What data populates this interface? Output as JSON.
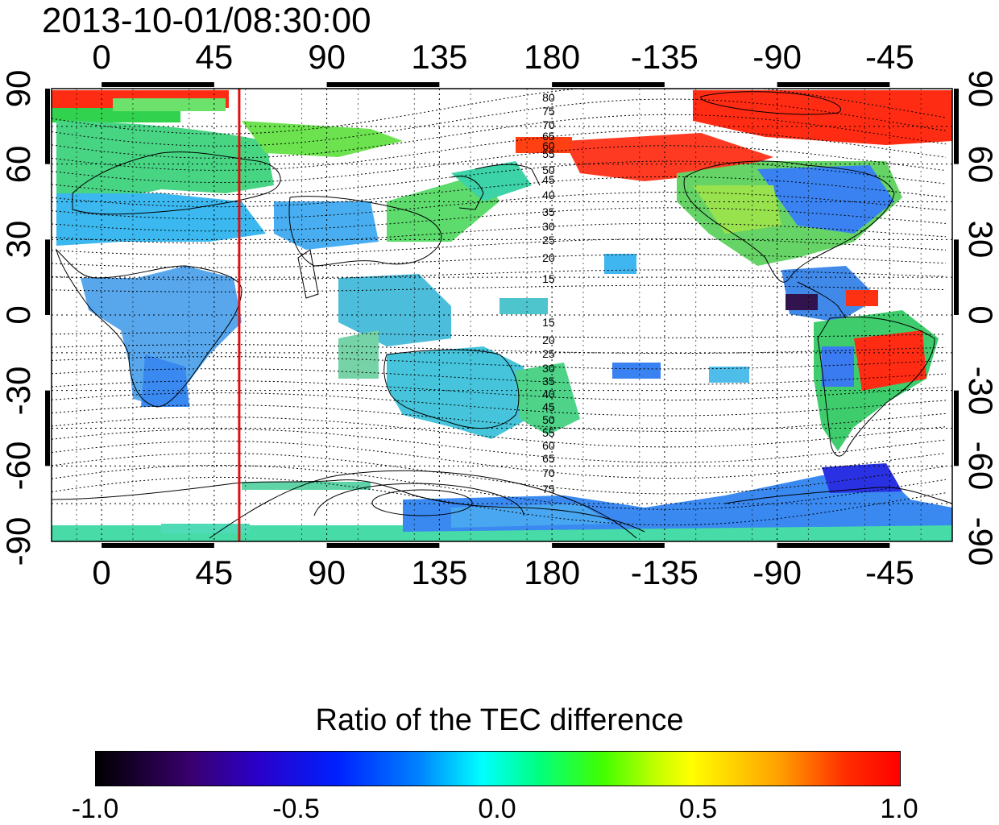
{
  "header": {
    "timestamp": "2013-10-01/08:30:00"
  },
  "map": {
    "lon_ticks": [
      "0",
      "45",
      "90",
      "135",
      "180",
      "-135",
      "-90",
      "-45"
    ],
    "lat_ticks_left": [
      "90",
      "60",
      "30",
      "0",
      "-30",
      "-60",
      "-90"
    ],
    "lat_ticks_right": [
      "90",
      "60",
      "30",
      "0",
      "-30",
      "-60",
      "-90"
    ],
    "contour_labels_north": [
      "80",
      "75",
      "70",
      "65",
      "60",
      "55",
      "50",
      "45",
      "40",
      "35",
      "30",
      "25",
      "20",
      "15"
    ],
    "contour_labels_south": [
      "15",
      "20",
      "25",
      "30",
      "35",
      "40",
      "45",
      "50",
      "55",
      "60",
      "65",
      "70",
      "75"
    ],
    "marker_longitude": 55,
    "marker_color": "#e01010",
    "projection": "cylindrical, lon -20 to 340 (labels wrap to -45), lat -90 to 90",
    "dotted_grid": true
  },
  "colorbar": {
    "title": "Ratio of the TEC difference",
    "tick_labels": [
      "-1.0",
      "-0.5",
      "0.0",
      "0.5",
      "1.0"
    ],
    "range": [
      -1.0,
      1.0
    ],
    "colormap": "black-purple-blue-cyan-green-yellow-red"
  }
}
